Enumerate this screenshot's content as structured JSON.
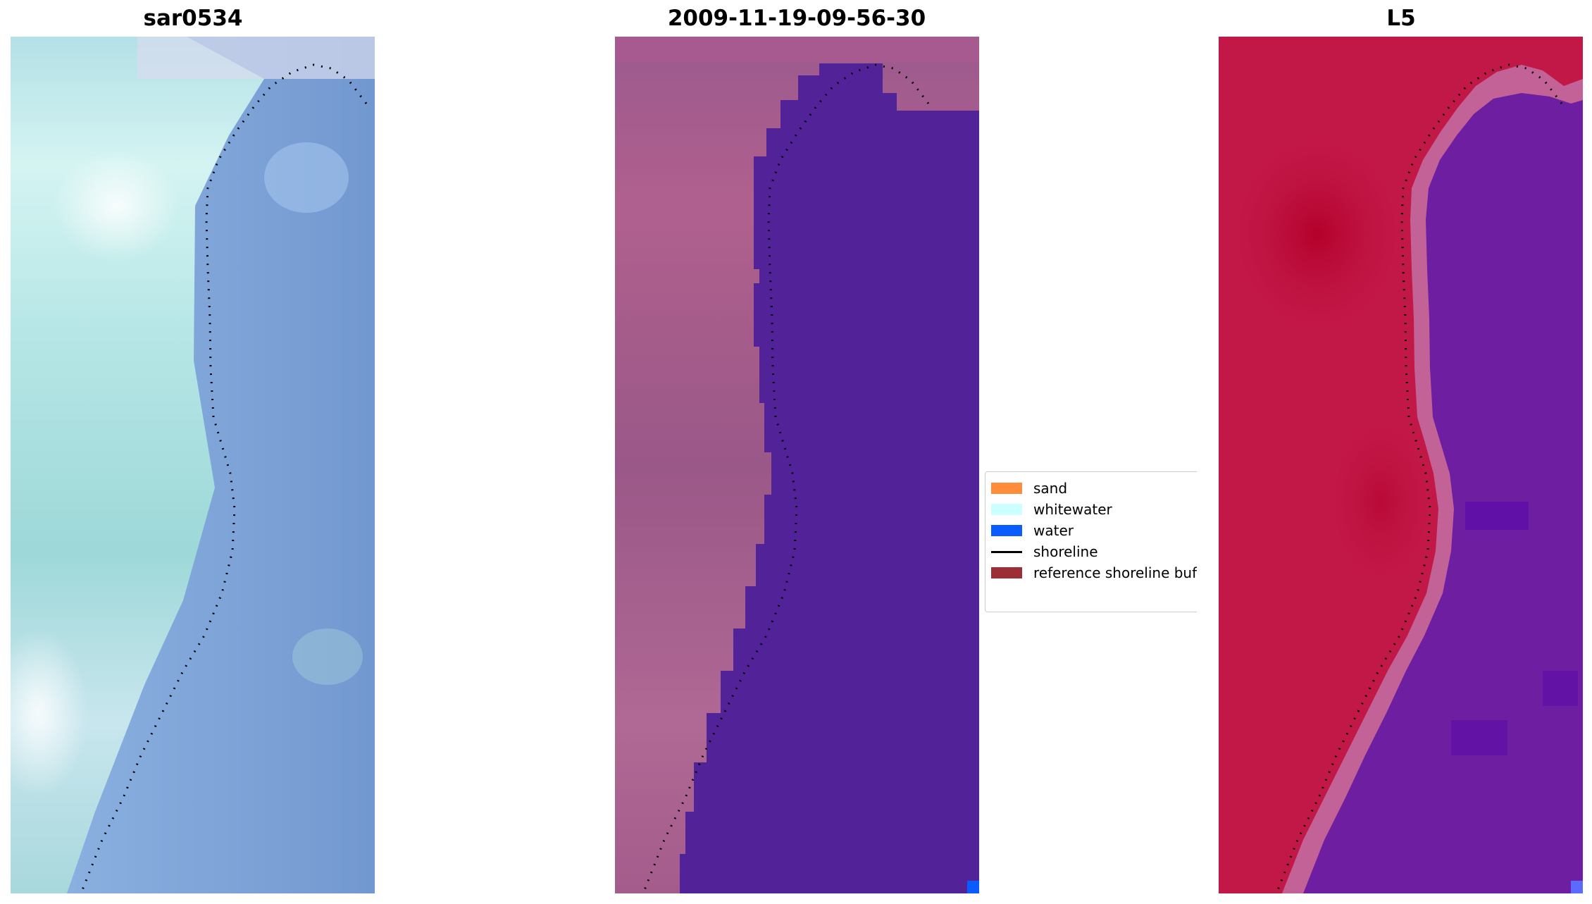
{
  "panels": [
    {
      "title": "sar0534"
    },
    {
      "title": "2009-11-19-09-56-30"
    },
    {
      "title": "L5"
    }
  ],
  "legend": {
    "items": [
      {
        "label": "sand",
        "color": "#ff8c3a",
        "kind": "patch"
      },
      {
        "label": "whitewater",
        "color": "#ccffff",
        "kind": "patch"
      },
      {
        "label": "water",
        "color": "#0a5cff",
        "kind": "patch"
      },
      {
        "label": "shoreline",
        "color": "#000000",
        "kind": "line"
      },
      {
        "label": "reference shoreline buffer",
        "color": "#9b2f35",
        "kind": "patch"
      }
    ]
  },
  "colors": {
    "rgb_land": "#a8e4e2",
    "rgb_water": "#7b9fd6",
    "classified_land": "#a0598e",
    "classified_water_overlay": "#522299",
    "index_land": "#c01546",
    "index_water": "#6a1a9e",
    "shoreline_dots": "#000000"
  }
}
